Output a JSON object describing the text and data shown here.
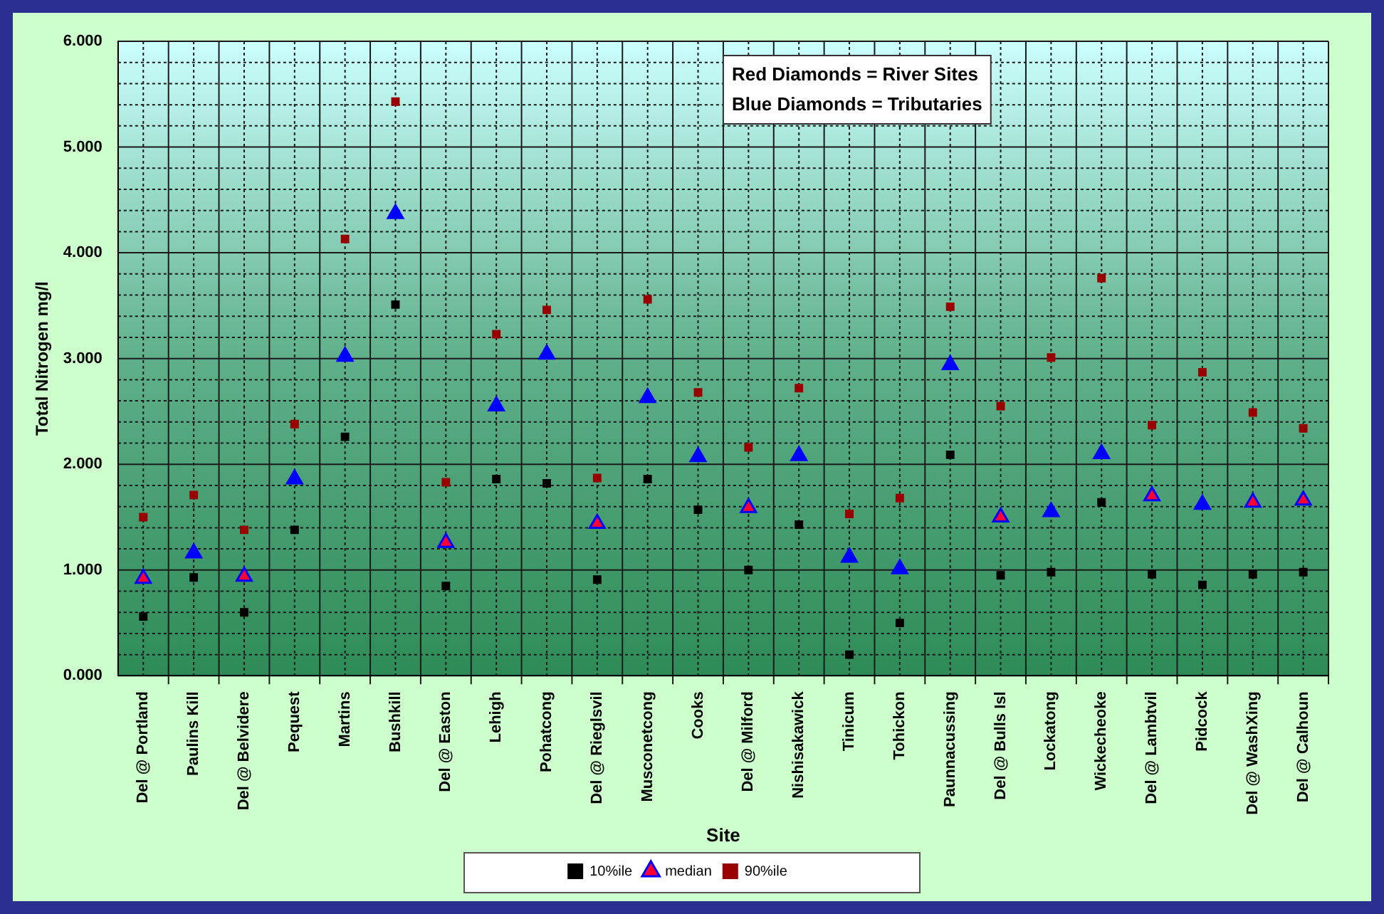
{
  "chart_data": {
    "type": "scatter",
    "xlabel": "Site",
    "ylabel": "Total Nitrogen mg/l",
    "annotations": [
      "Red Diamonds = River Sites",
      "Blue Diamonds = Tributaries"
    ],
    "categories": [
      "Del @ Portland",
      "Paulins Kill",
      "Del @ Belvidere",
      "Pequest",
      "Martins",
      "Bushkill",
      "Del @ Easton",
      "Lehigh",
      "Pohatcong",
      "Del @ Rieglsvil",
      "Musconetcong",
      "Cooks",
      "Del @ Milford",
      "Nishisakawick",
      "Tinicum",
      "Tohickon",
      "Paunnacussing",
      "Del @ Bulls Isl",
      "Lockatong",
      "Wickecheoke",
      "Del @ Lambtvil",
      "Pidcock",
      "Del @ WashXing",
      "Del @ Calhoun"
    ],
    "series": [
      {
        "name": "10%ile",
        "marker": "square",
        "color": "#000000",
        "values": [
          0.56,
          0.93,
          0.6,
          1.38,
          2.26,
          3.51,
          0.85,
          1.86,
          1.82,
          0.91,
          1.86,
          1.57,
          1.0,
          1.43,
          0.2,
          0.5,
          2.09,
          0.95,
          0.98,
          1.64,
          0.96,
          0.86,
          0.96,
          0.98
        ]
      },
      {
        "name": "median",
        "marker": "triangle",
        "color": "#0000ff",
        "colors": [
          "#ff0033",
          "#0000ff",
          "#ff0033",
          "#0000ff",
          "#0000ff",
          "#0000ff",
          "#ff0033",
          "#0000ff",
          "#0000ff",
          "#ff0033",
          "#0000ff",
          "#0000ff",
          "#ff0033",
          "#0000ff",
          "#0000ff",
          "#0000ff",
          "#0000ff",
          "#ff0033",
          "#0000ff",
          "#0000ff",
          "#ff0033",
          "#0000ff",
          "#ff0033",
          "#ff0033"
        ],
        "values": [
          0.92,
          1.16,
          0.94,
          1.86,
          3.02,
          4.37,
          1.26,
          2.55,
          3.04,
          1.44,
          2.63,
          2.07,
          1.59,
          2.08,
          1.12,
          1.01,
          2.94,
          1.5,
          1.55,
          2.1,
          1.7,
          1.62,
          1.64,
          1.66
        ]
      },
      {
        "name": "90%ile",
        "marker": "square",
        "color": "#990000",
        "values": [
          1.5,
          1.71,
          1.38,
          2.38,
          4.13,
          5.43,
          1.83,
          3.23,
          3.46,
          1.87,
          3.56,
          2.68,
          2.16,
          2.72,
          1.53,
          1.68,
          3.49,
          2.55,
          3.01,
          3.76,
          2.37,
          2.87,
          2.49,
          2.34
        ]
      }
    ],
    "ylim": [
      0,
      6
    ],
    "yticks": [
      {
        "value": 0,
        "label": "0.000"
      },
      {
        "value": 0.2,
        "label": null
      },
      {
        "value": 0.4,
        "label": null
      },
      {
        "value": 0.6,
        "label": null
      },
      {
        "value": 0.8,
        "label": null
      },
      {
        "value": 1,
        "label": "1.000"
      },
      {
        "value": 1.2,
        "label": null
      },
      {
        "value": 1.4,
        "label": null
      },
      {
        "value": 1.6,
        "label": null
      },
      {
        "value": 1.8,
        "label": null
      },
      {
        "value": 2,
        "label": "2.000"
      },
      {
        "value": 2.2,
        "label": null
      },
      {
        "value": 2.4,
        "label": null
      },
      {
        "value": 2.6,
        "label": null
      },
      {
        "value": 2.8,
        "label": null
      },
      {
        "value": 3,
        "label": "3.000"
      },
      {
        "value": 3.2,
        "label": null
      },
      {
        "value": 3.4,
        "label": null
      },
      {
        "value": 3.6,
        "label": null
      },
      {
        "value": 3.8,
        "label": null
      },
      {
        "value": 4,
        "label": "4.000"
      },
      {
        "value": 4.2,
        "label": null
      },
      {
        "value": 4.4,
        "label": null
      },
      {
        "value": 4.6,
        "label": null
      },
      {
        "value": 4.8,
        "label": null
      },
      {
        "value": 5,
        "label": "5.000"
      },
      {
        "value": 5.2,
        "label": null
      },
      {
        "value": 5.4,
        "label": null
      },
      {
        "value": 5.6,
        "label": null
      },
      {
        "value": 5.8,
        "label": null
      },
      {
        "value": 6,
        "label": "6.000"
      }
    ],
    "grid": true,
    "legend": "bottom"
  }
}
